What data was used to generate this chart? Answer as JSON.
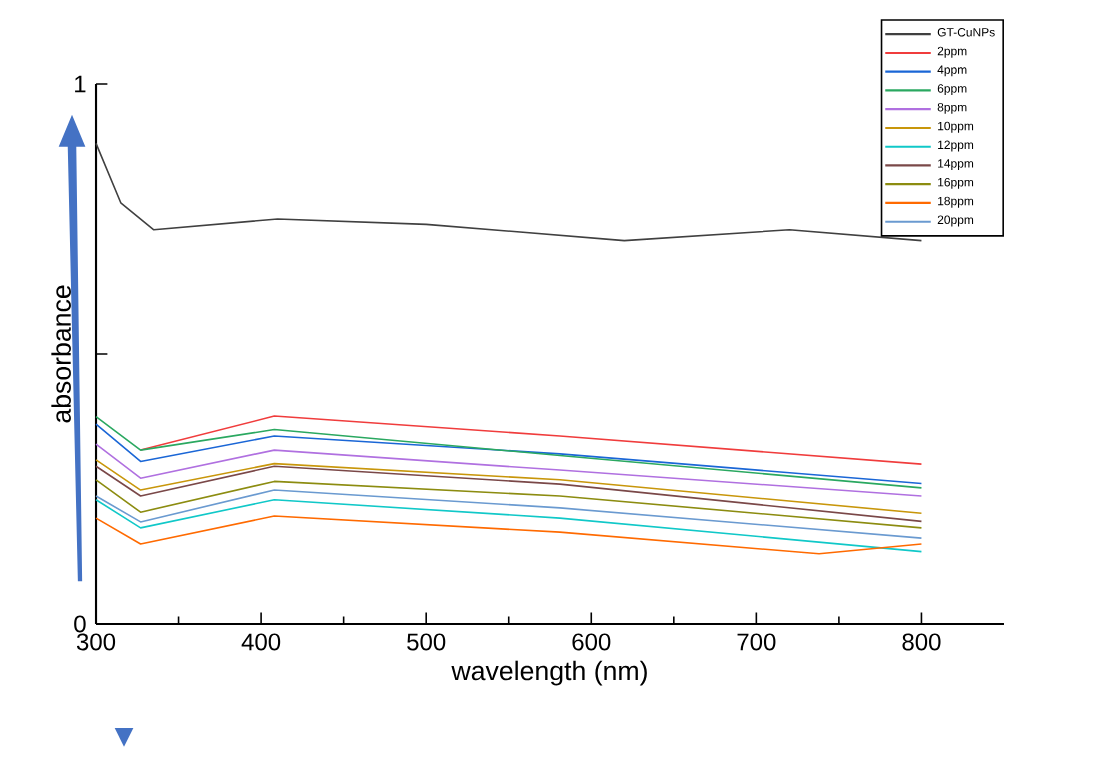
{
  "chart_data": {
    "type": "line",
    "xlabel": "wavelength (nm)",
    "ylabel": "absorbance",
    "xlim": [
      300,
      850
    ],
    "xticks": [
      300,
      400,
      500,
      600,
      700,
      800
    ],
    "ylim": [
      0,
      1
    ],
    "yticks": [
      0,
      {
        "value": 0.5,
        "label": null
      },
      1
    ],
    "legend": "top right",
    "grid": false,
    "marker": "none",
    "line_style": "solid",
    "series": [
      {
        "name": "GT-CuNPs",
        "color": "#404040",
        "x": [
          300,
          315,
          335,
          410,
          500,
          620,
          720,
          800
        ],
        "values": [
          0.89,
          0.78,
          0.73,
          0.75,
          0.74,
          0.71,
          0.73,
          0.71
        ]
      },
      {
        "name": "2ppm",
        "color": "#f03c3c",
        "x": [
          327,
          408,
          581,
          800
        ],
        "values": [
          0.322,
          0.385,
          0.348,
          0.296
        ]
      },
      {
        "name": "4ppm",
        "color": "#1a66d6",
        "x": [
          300,
          327,
          408,
          581,
          800
        ],
        "values": [
          0.37,
          0.301,
          0.348,
          0.315,
          0.26
        ]
      },
      {
        "name": "6ppm",
        "color": "#2aa860",
        "x": [
          300,
          327,
          408,
          581,
          800
        ],
        "values": [
          0.384,
          0.322,
          0.36,
          0.312,
          0.252
        ]
      },
      {
        "name": "8ppm",
        "color": "#b070e0",
        "x": [
          300,
          327,
          408,
          581,
          800
        ],
        "values": [
          0.333,
          0.27,
          0.322,
          0.285,
          0.237
        ]
      },
      {
        "name": "10ppm",
        "color": "#c8960a",
        "x": [
          300,
          327,
          408,
          581,
          800
        ],
        "values": [
          0.304,
          0.248,
          0.297,
          0.267,
          0.205
        ]
      },
      {
        "name": "12ppm",
        "color": "#10c8c8",
        "x": [
          300,
          327,
          408,
          581,
          800
        ],
        "values": [
          0.23,
          0.178,
          0.23,
          0.196,
          0.134
        ]
      },
      {
        "name": "14ppm",
        "color": "#7a4848",
        "x": [
          300,
          327,
          408,
          581,
          800
        ],
        "values": [
          0.292,
          0.237,
          0.292,
          0.259,
          0.19
        ]
      },
      {
        "name": "16ppm",
        "color": "#8c8c10",
        "x": [
          300,
          327,
          408,
          581,
          800
        ],
        "values": [
          0.267,
          0.207,
          0.264,
          0.237,
          0.178
        ]
      },
      {
        "name": "18ppm",
        "color": "#ff6a00",
        "x": [
          300,
          327,
          408,
          581,
          738,
          800
        ],
        "values": [
          0.196,
          0.148,
          0.2,
          0.17,
          0.13,
          0.148
        ]
      },
      {
        "name": "20ppm",
        "color": "#6a9ad0",
        "x": [
          300,
          327,
          408,
          581,
          800
        ],
        "values": [
          0.237,
          0.189,
          0.248,
          0.215,
          0.159
        ]
      }
    ]
  }
}
